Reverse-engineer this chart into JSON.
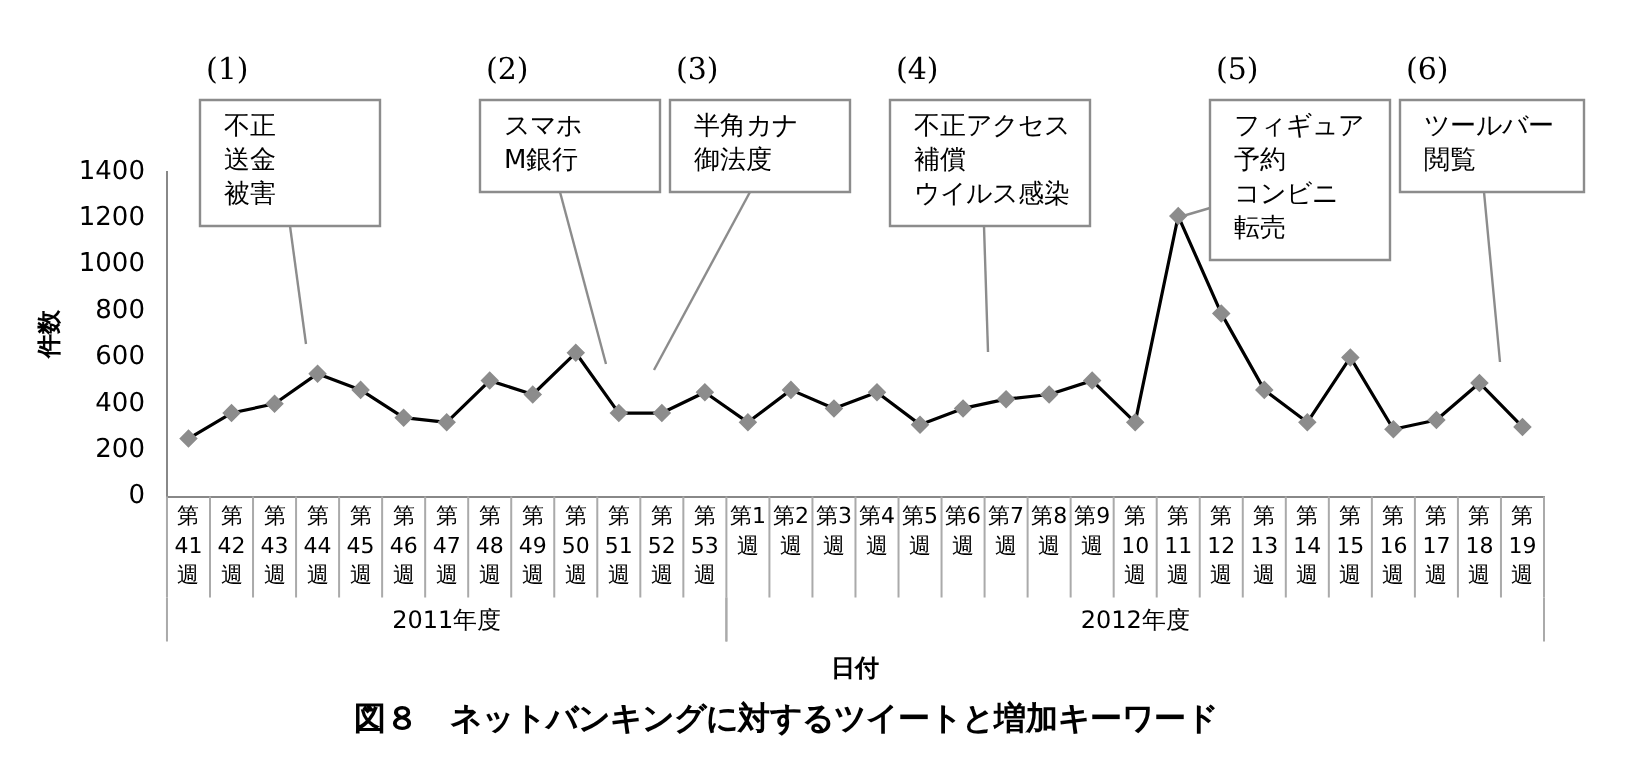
{
  "chart_data": {
    "type": "line",
    "title": "図８　ネットバンキングに対するツイートと増加キーワード",
    "xlabel": "日付",
    "ylabel": "件数",
    "categories": [
      "第41週",
      "第42週",
      "第43週",
      "第44週",
      "第45週",
      "第46週",
      "第47週",
      "第48週",
      "第49週",
      "第50週",
      "第51週",
      "第52週",
      "第53週",
      "第1週",
      "第2週",
      "第3週",
      "第4週",
      "第5週",
      "第6週",
      "第7週",
      "第8週",
      "第9週",
      "第10週",
      "第11週",
      "第12週",
      "第13週",
      "第14週",
      "第15週",
      "第16週",
      "第17週",
      "第18週",
      "第19週"
    ],
    "series": [
      {
        "color": "#000000",
        "values": [
          250,
          360,
          400,
          530,
          460,
          340,
          320,
          500,
          440,
          620,
          360,
          360,
          450,
          320,
          460,
          380,
          450,
          310,
          380,
          420,
          440,
          500,
          320,
          1210,
          790,
          460,
          320,
          600,
          290,
          330,
          490,
          300
        ]
      }
    ],
    "ylim": [
      0,
      1400
    ],
    "yticks": [
      0,
      200,
      400,
      600,
      800,
      1000,
      1200,
      1400
    ],
    "grid": false,
    "legend": false,
    "marker": "diamond",
    "annotations": [
      "(1)",
      "不正送金被害",
      "(2)",
      "スマホM銀行",
      "(3)",
      "半角カナ御法度",
      "(4)",
      "不正アクセス補償ウイルス感染",
      "(5)",
      "フィギュア予約コンビニ転売",
      "(6)",
      "ツールバー閲覧",
      "2011年度",
      "2012年度"
    ]
  }
}
